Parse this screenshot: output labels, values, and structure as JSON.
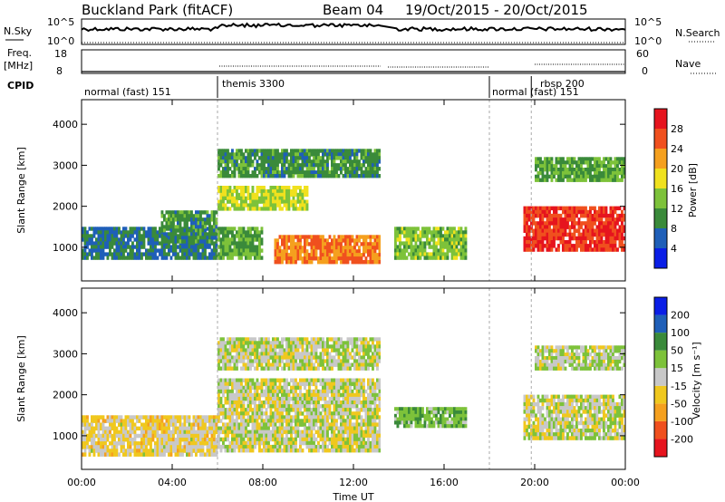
{
  "header": {
    "station": "Buckland Park (fitACF)",
    "beam": "Beam 04",
    "date_range": "19/Oct/2015 - 20/Oct/2015"
  },
  "top_panels": {
    "nsky_label": "N.Sky",
    "nsky_ticks": [
      "10^5",
      "10^0"
    ],
    "nsearch_label": "N.Search",
    "nsearch_ticks": [
      "10^5",
      "10^0"
    ],
    "freq_label_1": "Freq.",
    "freq_label_2": "[MHz]",
    "freq_ticks": [
      "18",
      "8"
    ],
    "nave_label": "Nave",
    "nave_ticks": [
      "60",
      "0"
    ],
    "cpid_label": "CPID",
    "cpid_segments": [
      {
        "text": "normal (fast) 151",
        "start_h": 0.0
      },
      {
        "text": "themis 3300",
        "start_h": 6.0
      },
      {
        "text": "normal (fast) 151",
        "start_h": 18.0
      },
      {
        "text": "rbsp 200",
        "start_h": 19.85
      }
    ]
  },
  "x_axis": {
    "label": "Time UT",
    "ticks": [
      "00:00",
      "04:00",
      "08:00",
      "12:00",
      "16:00",
      "20:00",
      "00:00"
    ]
  },
  "power_panel": {
    "ylabel": "Slant Range [km]",
    "yticks": [
      "1000",
      "2000",
      "3000",
      "4000"
    ],
    "colorbar_label": "Power [dB]",
    "colorbar_ticks": [
      "4",
      "8",
      "12",
      "16",
      "20",
      "24",
      "28"
    ],
    "colors": [
      "#0a1ee6",
      "#1f5fb8",
      "#3a8a3a",
      "#7dc23a",
      "#f0e11e",
      "#f5a01e",
      "#f0501e",
      "#e6141e"
    ]
  },
  "velocity_panel": {
    "ylabel": "Slant Range [km]",
    "yticks": [
      "1000",
      "2000",
      "3000",
      "4000"
    ],
    "colorbar_label": "Velocity [m s⁻¹]",
    "colorbar_ticks": [
      "-200",
      "-100",
      "-50",
      "-15",
      "15",
      "50",
      "100",
      "200"
    ],
    "colors": [
      "#e6141e",
      "#f0501e",
      "#f5a01e",
      "#f0c81e",
      "#c8c8c8",
      "#7dc23a",
      "#3a8a3a",
      "#1f5fb8",
      "#0a1ee6"
    ]
  },
  "chart_data": [
    {
      "type": "heatmap",
      "title": "Power",
      "xlabel": "Time UT",
      "ylabel": "Slant Range [km]",
      "xlim": [
        0,
        24
      ],
      "ylim": [
        180,
        4600
      ],
      "value_label": "Power [dB]",
      "value_range": [
        0,
        32
      ],
      "regions": [
        {
          "t0": 0.0,
          "t1": 6.0,
          "r0": 700,
          "r1": 1500,
          "value": 8
        },
        {
          "t0": 3.5,
          "t1": 6.0,
          "r0": 1100,
          "r1": 1900,
          "value": 10
        },
        {
          "t0": 6.0,
          "t1": 8.0,
          "r0": 700,
          "r1": 1500,
          "value": 12
        },
        {
          "t0": 6.0,
          "t1": 10.0,
          "r0": 1900,
          "r1": 2500,
          "value": 16
        },
        {
          "t0": 6.0,
          "t1": 13.2,
          "r0": 2700,
          "r1": 3400,
          "value": 10
        },
        {
          "t0": 8.5,
          "t1": 13.2,
          "r0": 600,
          "r1": 1300,
          "value": 24
        },
        {
          "t0": 13.8,
          "t1": 17.0,
          "r0": 700,
          "r1": 1500,
          "value": 14
        },
        {
          "t0": 19.5,
          "t1": 24.0,
          "r0": 900,
          "r1": 2000,
          "value": 28
        },
        {
          "t0": 20.0,
          "t1": 24.0,
          "r0": 2600,
          "r1": 3200,
          "value": 12
        }
      ]
    },
    {
      "type": "heatmap",
      "title": "Velocity",
      "xlabel": "Time UT",
      "ylabel": "Slant Range [km]",
      "xlim": [
        0,
        24
      ],
      "ylim": [
        180,
        4600
      ],
      "value_label": "Velocity [m s⁻¹]",
      "value_range": [
        -200,
        200
      ],
      "regions": [
        {
          "t0": 0.0,
          "t1": 6.0,
          "r0": 500,
          "r1": 1500,
          "value": -20
        },
        {
          "t0": 6.0,
          "t1": 13.2,
          "r0": 600,
          "r1": 2400,
          "value": 0
        },
        {
          "t0": 6.0,
          "t1": 13.2,
          "r0": 2600,
          "r1": 3400,
          "value": 5
        },
        {
          "t0": 13.8,
          "t1": 17.0,
          "r0": 1200,
          "r1": 1700,
          "value": 40
        },
        {
          "t0": 19.5,
          "t1": 24.0,
          "r0": 900,
          "r1": 2000,
          "value": 0
        },
        {
          "t0": 20.0,
          "t1": 24.0,
          "r0": 2600,
          "r1": 3200,
          "value": 10
        }
      ]
    }
  ]
}
